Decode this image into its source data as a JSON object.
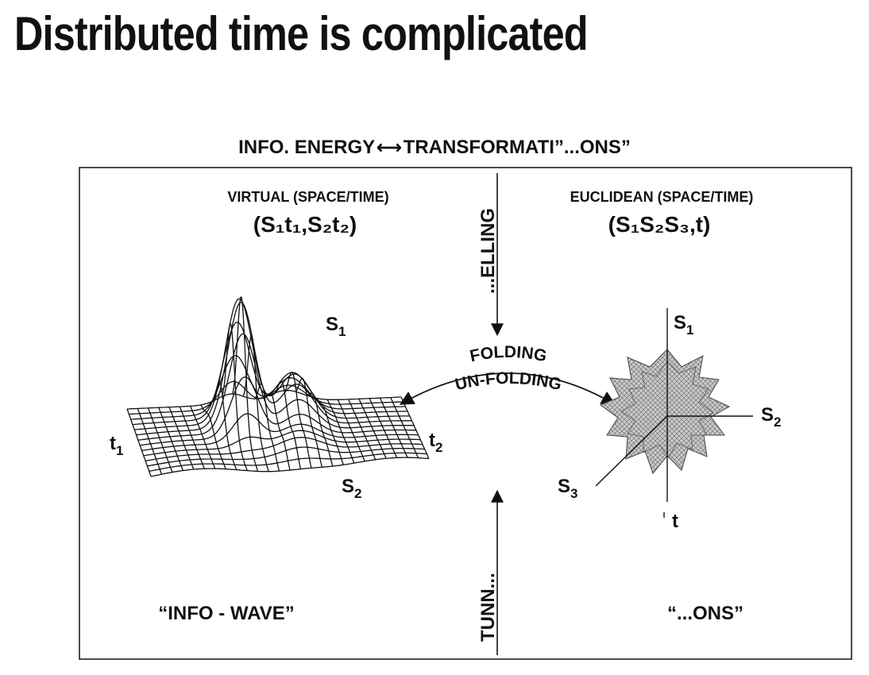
{
  "title": "Distributed time is complicated",
  "figure": {
    "header": {
      "left": "INFO. ENERGY",
      "right": "TRANSFORMATI”...ONS”",
      "arrow": "⟷"
    },
    "virtual": {
      "label": "VIRTUAL (SPACE/TIME)",
      "coords": "(S₁t₁,S₂t₂)"
    },
    "euclidean": {
      "label": "EUCLIDEAN (SPACE/TIME)",
      "coords": "(S₁S₂S₃,t)"
    },
    "vertical_top": "...ELLING",
    "vertical_bottom": "TUNN...",
    "folding": "FOLDING",
    "unfolding": "UN-FOLDING",
    "wave_axes": {
      "s1": "S",
      "s1_sub": "1",
      "s2": "S",
      "s2_sub": "2",
      "t1": "t",
      "t1_sub": "1",
      "t2": "t",
      "t2_sub": "2"
    },
    "star_axes": {
      "s1": "S",
      "s1_sub": "1",
      "s2": "S",
      "s2_sub": "2",
      "s3": "S",
      "s3_sub": "3",
      "t": "t"
    },
    "bottom_left": "“INFO - WAVE”",
    "bottom_right": "“...ONS”"
  }
}
